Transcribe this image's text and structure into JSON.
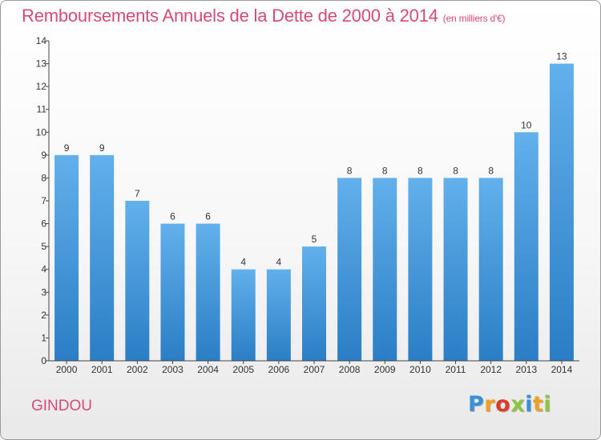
{
  "header": {
    "title": "Remboursements Annuels de la Dette de 2000 à 2014",
    "unit": "(en milliers d'€)"
  },
  "footer": {
    "commune": "GINDOU",
    "logo_letters": [
      {
        "char": "P",
        "color": "#3a8fd8"
      },
      {
        "char": "r",
        "color": "#f0a020"
      },
      {
        "char": "o",
        "color": "#e03a2a"
      },
      {
        "char": "x",
        "color": "#8cc63f"
      },
      {
        "char": "i",
        "color": "#3a8fd8"
      },
      {
        "char": "t",
        "color": "#f0a020"
      },
      {
        "char": "i",
        "color": "#8cc63f"
      }
    ]
  },
  "chart_data": {
    "type": "bar",
    "categories": [
      "2000",
      "2001",
      "2002",
      "2003",
      "2004",
      "2005",
      "2006",
      "2007",
      "2008",
      "2009",
      "2010",
      "2011",
      "2012",
      "2013",
      "2014"
    ],
    "values": [
      9,
      9,
      7,
      6,
      6,
      4,
      4,
      5,
      8,
      8,
      8,
      8,
      8,
      10,
      13
    ],
    "title": "Remboursements Annuels de la Dette de 2000 à 2014",
    "xlabel": "",
    "ylabel": "",
    "ylim": [
      0,
      14
    ],
    "yticks": [
      0,
      1,
      2,
      3,
      4,
      5,
      6,
      7,
      8,
      9,
      10,
      11,
      12,
      13,
      14
    ],
    "grid": false,
    "legend": "none",
    "colors": {
      "bar_light": "#62b0ec",
      "bar_dark": "#2b7ec5",
      "axis": "#444444"
    }
  }
}
